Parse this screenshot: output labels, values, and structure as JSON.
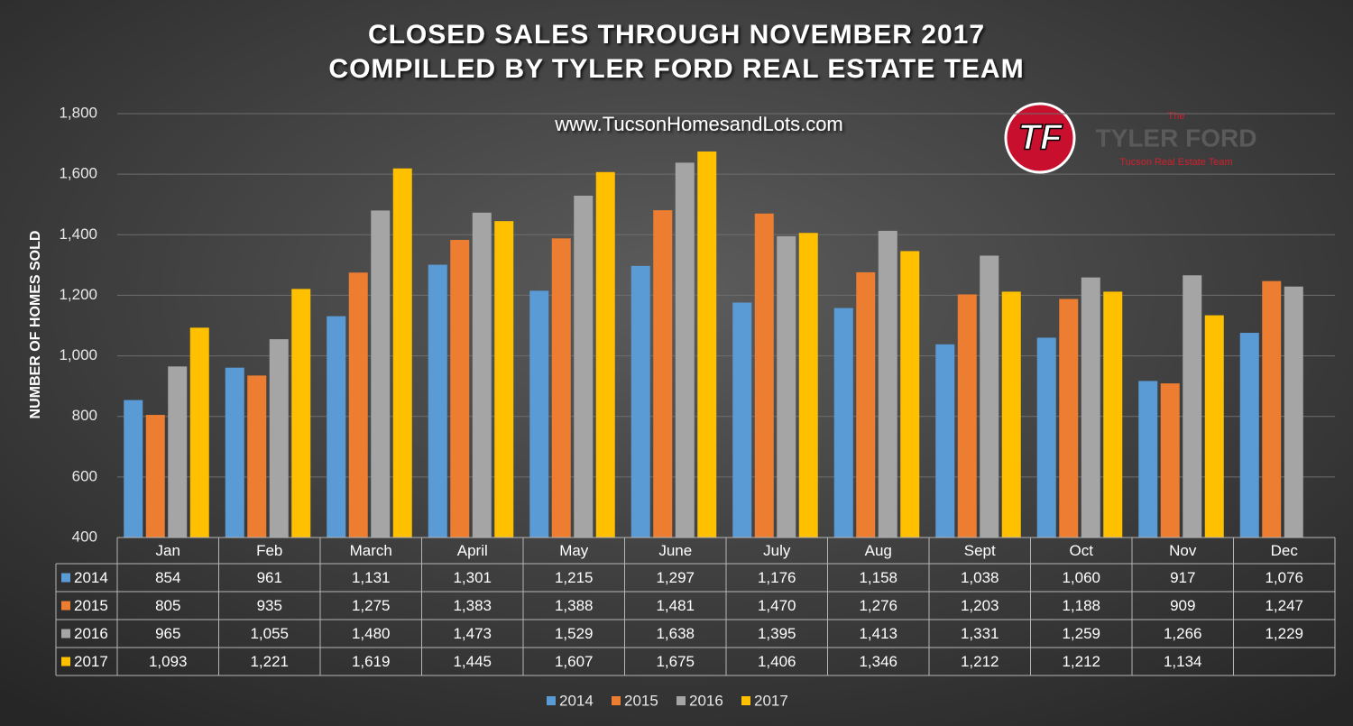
{
  "chart_data": {
    "type": "bar",
    "title": "CLOSED SALES THROUGH NOVEMBER 2017",
    "subtitle": "COMPILLED BY TYLER FORD REAL ESTATE TEAM",
    "website": "www.TucsonHomesandLots.com",
    "y_label": "NUMBER OF HOMES SOLD",
    "logo": {
      "initials": "TF",
      "top": "The",
      "name": "TYLER FORD",
      "tagline": "Tucson Real Estate Team"
    },
    "categories": [
      "Jan",
      "Feb",
      "March",
      "April",
      "May",
      "June",
      "July",
      "Aug",
      "Sept",
      "Oct",
      "Nov",
      "Dec"
    ],
    "series": [
      {
        "name": "2014",
        "color": "#5b9bd5",
        "values": [
          854,
          961,
          1131,
          1301,
          1215,
          1297,
          1176,
          1158,
          1038,
          1060,
          917,
          1076
        ],
        "value_labels": [
          "854",
          "961",
          "1,131",
          "1,301",
          "1,215",
          "1,297",
          "1,176",
          "1,158",
          "1,038",
          "1,060",
          "917",
          "1,076"
        ]
      },
      {
        "name": "2015",
        "color": "#ed7d31",
        "values": [
          805,
          935,
          1275,
          1383,
          1388,
          1481,
          1470,
          1276,
          1203,
          1188,
          909,
          1247
        ],
        "value_labels": [
          "805",
          "935",
          "1,275",
          "1,383",
          "1,388",
          "1,481",
          "1,470",
          "1,276",
          "1,203",
          "1,188",
          "909",
          "1,247"
        ]
      },
      {
        "name": "2016",
        "color": "#a5a5a5",
        "values": [
          965,
          1055,
          1480,
          1473,
          1529,
          1638,
          1395,
          1413,
          1331,
          1259,
          1266,
          1229
        ],
        "value_labels": [
          "965",
          "1,055",
          "1,480",
          "1,473",
          "1,529",
          "1,638",
          "1,395",
          "1,413",
          "1,331",
          "1,259",
          "1,266",
          "1,229"
        ]
      },
      {
        "name": "2017",
        "color": "#ffc000",
        "values": [
          1093,
          1221,
          1619,
          1445,
          1607,
          1675,
          1406,
          1346,
          1212,
          1212,
          1134,
          null
        ],
        "value_labels": [
          "1,093",
          "1,221",
          "1,619",
          "1,445",
          "1,607",
          "1,675",
          "1,406",
          "1,346",
          "1,212",
          "1,212",
          "1,134",
          null
        ]
      }
    ],
    "ylim": [
      400,
      1800
    ],
    "yticks": [
      400,
      600,
      800,
      {
        "value": 1000,
        "label": "1,000"
      },
      {
        "value": 1200,
        "label": "1,200"
      },
      {
        "value": 1400,
        "label": "1,400"
      },
      {
        "value": 1600,
        "label": "1,600"
      },
      {
        "value": 1800,
        "label": "1,800"
      }
    ],
    "grid": true,
    "legend": "bottom"
  }
}
